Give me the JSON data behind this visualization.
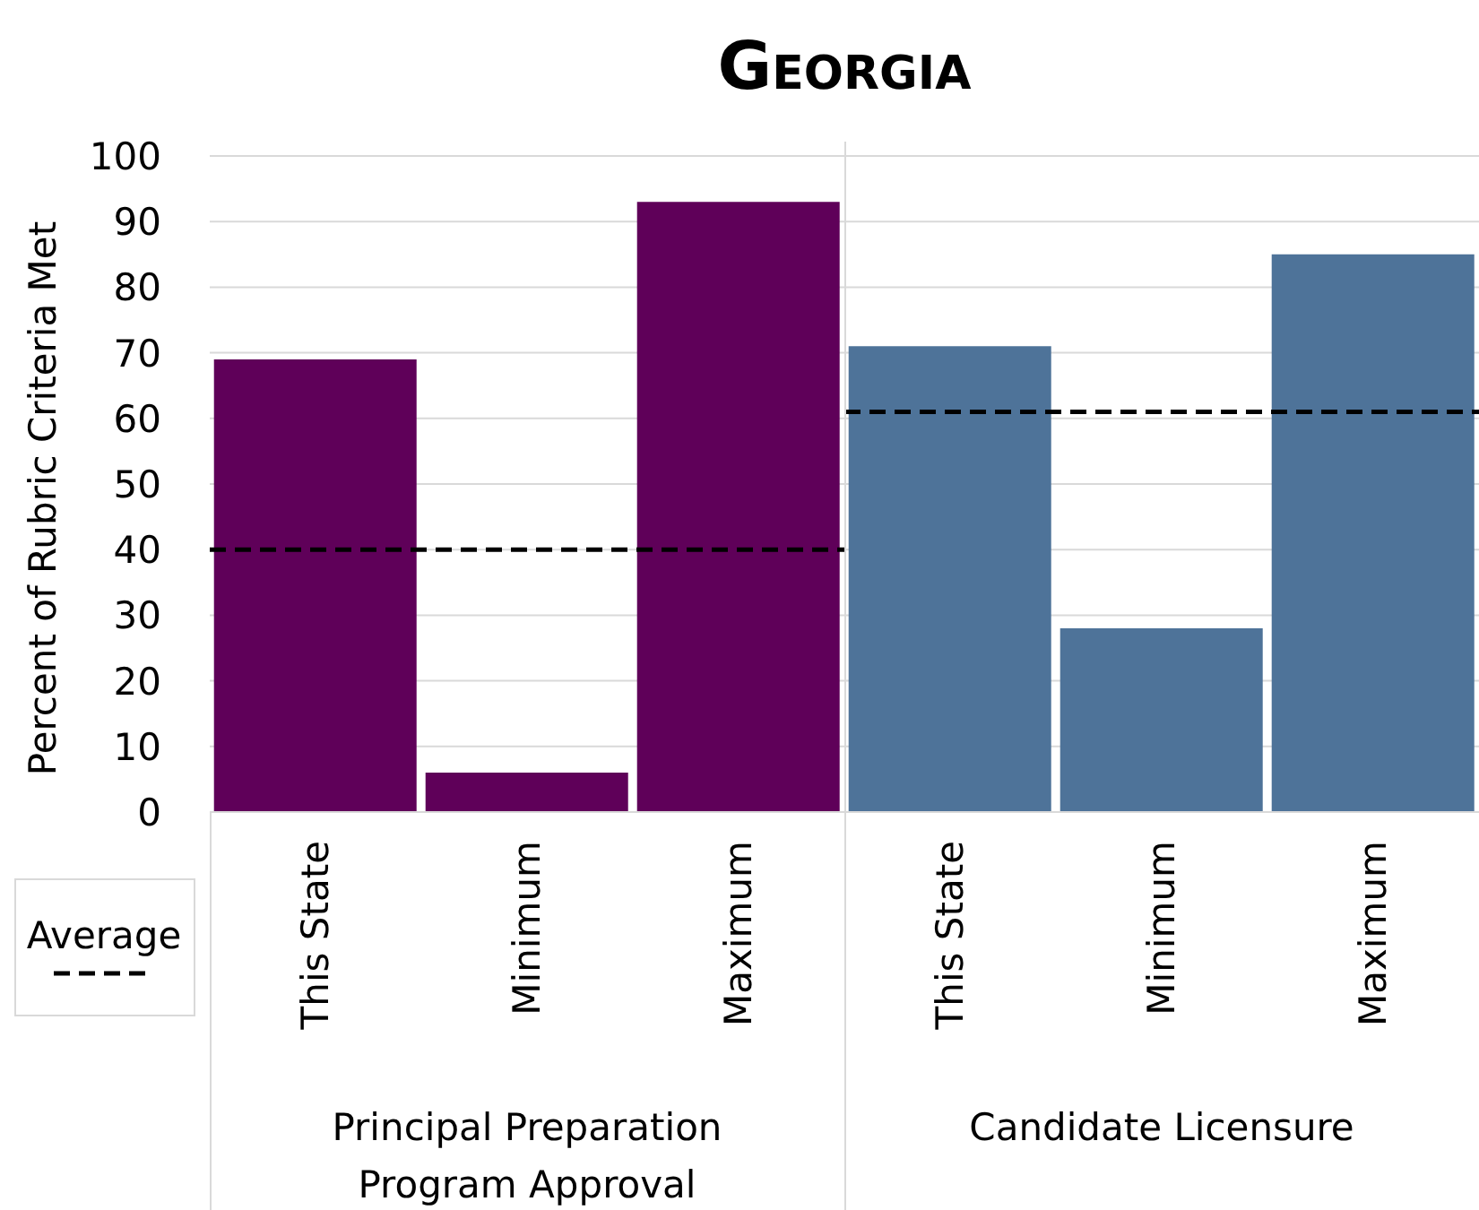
{
  "chart_data": {
    "type": "bar",
    "title": "Georgia",
    "ylabel": "Percent of Rubric Criteria Met",
    "categories": [
      "This State",
      "Minimum",
      "Maximum",
      "This State",
      "Minimum",
      "Maximum"
    ],
    "values": [
      69,
      6,
      93,
      71,
      28,
      85
    ],
    "colors": [
      "#5f0059",
      "#5f0059",
      "#5f0059",
      "#4e7399",
      "#4e7399",
      "#4e7399"
    ],
    "ylim": [
      0,
      100
    ],
    "yticks": [
      0,
      10,
      20,
      30,
      40,
      50,
      60,
      70,
      80,
      90,
      100
    ],
    "grid": "y",
    "ref_lines": [
      {
        "axis": "y",
        "value": 40,
        "label": "Average",
        "color": "#000000",
        "line_style": "dashed"
      },
      {
        "axis": "y",
        "value": 61,
        "color": "#000000",
        "line_style": "dashed"
      }
    ],
    "annotations": [
      "Principal Preparation Program Approval",
      "Candidate Licensure"
    ],
    "legend": "left"
  }
}
